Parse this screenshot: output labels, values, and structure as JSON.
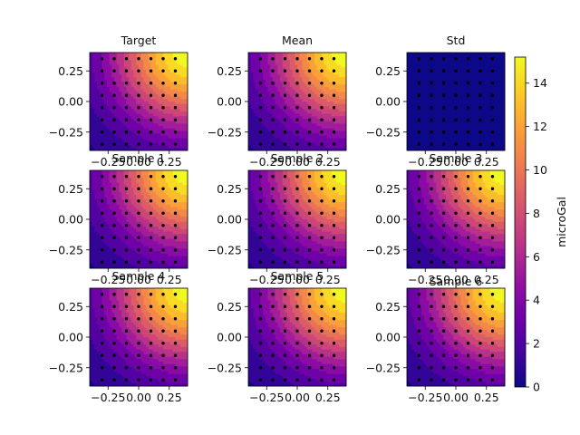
{
  "chart_data": {
    "type": "heatmap",
    "panels": [
      {
        "title": "Target",
        "x_ticks": [
          "−0.25",
          "0.00",
          "0.25"
        ],
        "y_ticks": [
          "0.25",
          "0.00",
          "−0.25"
        ]
      },
      {
        "title": "Mean",
        "x_ticks": [
          "−0.25",
          "0.00",
          "0.25"
        ],
        "y_ticks": [
          "0.25",
          "0.00",
          "−0.25"
        ]
      },
      {
        "title": "Std",
        "x_ticks": [
          "−0.25",
          "0.00",
          "0.25"
        ],
        "y_ticks": [
          "0.25",
          "0.00",
          "−0.25"
        ]
      },
      {
        "title": "Sample 1",
        "x_ticks": [
          "−0.25",
          "0.00",
          "0.25"
        ],
        "y_ticks": [
          "0.25",
          "0.00",
          "−0.25"
        ]
      },
      {
        "title": "Sample 2",
        "x_ticks": [
          "−0.25",
          "0.00",
          "0.25"
        ],
        "y_ticks": [
          "0.25",
          "0.00",
          "−0.25"
        ]
      },
      {
        "title": "Sample 3",
        "x_ticks": [
          "−0.25",
          "0.00",
          "0.25"
        ],
        "y_ticks": [
          "0.25",
          "0.00",
          "−0.25"
        ]
      },
      {
        "title": "Sample 4",
        "x_ticks": [
          "−0.25",
          "0.00",
          "0.25"
        ],
        "y_ticks": [
          "0.25",
          "0.00",
          "−0.25"
        ]
      },
      {
        "title": "Sample 5",
        "x_ticks": [
          "−0.25",
          "0.00",
          "0.25"
        ],
        "y_ticks": [
          "0.25",
          "0.00",
          "−0.25"
        ]
      },
      {
        "title": "Sample 6",
        "x_ticks": [
          "−0.25",
          "0.00",
          "0.25"
        ],
        "y_ticks": [
          "0.25",
          "0.00",
          "−0.25"
        ]
      }
    ],
    "tick_values": [
      -0.25,
      0.0,
      0.25
    ],
    "xlim": [
      -0.4,
      0.4
    ],
    "ylim": [
      -0.4,
      0.4
    ],
    "colorbar": {
      "label": "microGal",
      "ticks": [
        "0",
        "2",
        "4",
        "6",
        "8",
        "10",
        "12",
        "14"
      ],
      "tick_values": [
        0,
        2,
        4,
        6,
        8,
        10,
        12,
        14
      ],
      "range": [
        0,
        15.2
      ],
      "colormap": "plasma"
    },
    "field": {
      "peak_value": 15.2,
      "peak_x": 0.4,
      "peak_y": 0.4
    },
    "std_field_value": 0.3,
    "observation_points": {
      "x": [
        -0.3,
        -0.2,
        -0.1,
        0.0,
        0.1,
        0.2,
        0.3
      ],
      "y": [
        -0.35,
        -0.25,
        -0.15,
        -0.05,
        0.05,
        0.15,
        0.25,
        0.35
      ]
    },
    "grid": false
  }
}
